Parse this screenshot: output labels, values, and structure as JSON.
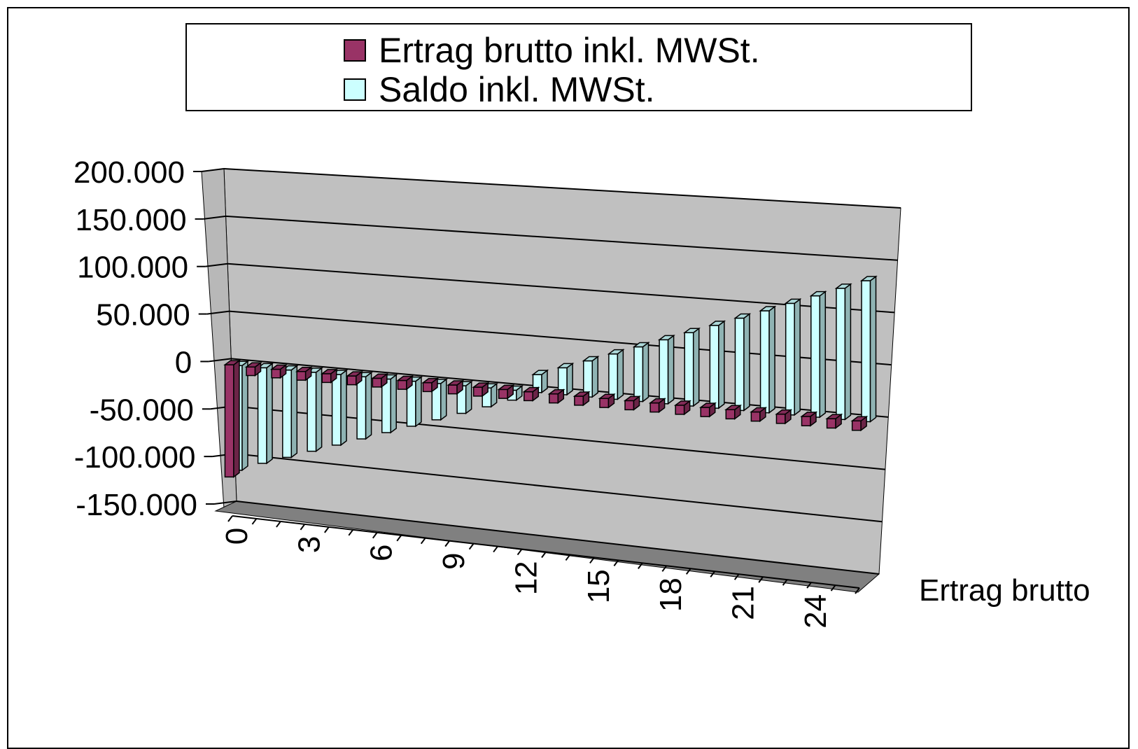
{
  "legend": {
    "items": [
      {
        "label": "Ertrag brutto inkl. MWSt.",
        "color": "#993366"
      },
      {
        "label": "Saldo inkl. MWSt.",
        "color": "#CCFFFF"
      }
    ]
  },
  "colors": {
    "back_wall": "#C0C0C0",
    "side_wall": "#B8B8B8",
    "floor": "#808080",
    "gridline": "#000000"
  },
  "chart_data": {
    "type": "bar",
    "variant": "3d-clustered-column",
    "title": "",
    "xlabel": "Ertrag brutto",
    "ylabel": "",
    "ylim": [
      -150000,
      200000
    ],
    "y_ticks": [
      "200.000",
      "150.000",
      "100.000",
      "50.000",
      "0",
      "-50.000",
      "-100.000",
      "-150.000"
    ],
    "x_ticks": [
      "0",
      "3",
      "6",
      "9",
      "12",
      "15",
      "18",
      "21",
      "24"
    ],
    "grid": true,
    "legend_position": "top",
    "categories": [
      "0",
      "1",
      "2",
      "3",
      "4",
      "5",
      "6",
      "7",
      "8",
      "9",
      "10",
      "11",
      "12",
      "13",
      "14",
      "15",
      "16",
      "17",
      "18",
      "19",
      "20",
      "21",
      "22",
      "23",
      "24",
      "25"
    ],
    "series": [
      {
        "name": "Ertrag brutto inkl. MWSt.",
        "values": [
          -118000,
          -9000,
          -9000,
          -9000,
          -9000,
          -9000,
          -9000,
          -9000,
          -9000,
          -9000,
          -9000,
          -9000,
          -9000,
          -9000,
          -9000,
          -9000,
          -9000,
          -9000,
          -9000,
          -9000,
          -9000,
          -9000,
          -9000,
          -9000,
          -9000,
          -9000
        ]
      },
      {
        "name": "Saldo inkl. MWSt.",
        "values": [
          -110000,
          -100000,
          -91000,
          -82000,
          -73000,
          -64000,
          -55000,
          -46000,
          -37000,
          -28000,
          -19000,
          -10000,
          18000,
          27000,
          36000,
          45000,
          54000,
          63000,
          72000,
          81000,
          90000,
          99000,
          108000,
          117000,
          126000,
          135000
        ]
      }
    ]
  }
}
